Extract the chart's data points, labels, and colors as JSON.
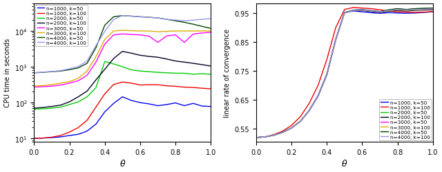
{
  "theta": [
    0.0,
    0.05,
    0.1,
    0.15,
    0.2,
    0.25,
    0.3,
    0.35,
    0.4,
    0.45,
    0.5,
    0.55,
    0.6,
    0.65,
    0.7,
    0.75,
    0.8,
    0.85,
    0.9,
    0.95,
    1.0
  ],
  "cpu_n1000_k50": [
    10,
    10.2,
    10.5,
    11,
    12,
    13,
    16,
    25,
    55,
    95,
    145,
    115,
    100,
    92,
    82,
    88,
    98,
    82,
    95,
    80,
    78
  ],
  "cpu_n1000_k100": [
    10,
    10.2,
    10.8,
    12,
    15,
    20,
    32,
    75,
    175,
    320,
    375,
    350,
    310,
    315,
    315,
    295,
    285,
    270,
    265,
    252,
    242
  ],
  "cpu_n2000_k50": [
    65,
    67,
    70,
    75,
    88,
    105,
    145,
    260,
    1400,
    1200,
    1000,
    820,
    760,
    730,
    700,
    680,
    660,
    660,
    620,
    640,
    620
  ],
  "cpu_n2000_k100": [
    70,
    73,
    78,
    85,
    105,
    145,
    210,
    430,
    850,
    1700,
    2700,
    2400,
    2100,
    1950,
    1850,
    1650,
    1450,
    1350,
    1250,
    1150,
    1050
  ],
  "cpu_n3000_k50": [
    270,
    278,
    288,
    308,
    348,
    408,
    580,
    1350,
    4300,
    7800,
    8300,
    8000,
    7800,
    7200,
    4800,
    7300,
    7800,
    4800,
    8200,
    8800,
    9200
  ],
  "cpu_n3000_k100": [
    290,
    298,
    318,
    348,
    385,
    480,
    760,
    1900,
    5800,
    10000,
    10500,
    10200,
    10000,
    10000,
    9500,
    9800,
    10000,
    10000,
    10000,
    10000,
    10000
  ],
  "cpu_n4000_k50": [
    680,
    700,
    730,
    760,
    830,
    930,
    1250,
    3400,
    14500,
    25000,
    27000,
    26000,
    25000,
    24200,
    23200,
    21200,
    19200,
    17500,
    15500,
    13500,
    11800
  ],
  "cpu_n4000_k100": [
    680,
    710,
    740,
    780,
    880,
    1020,
    1450,
    3900,
    9700,
    21000,
    27000,
    26000,
    25000,
    24000,
    23200,
    21200,
    20200,
    19200,
    20200,
    21200,
    22200
  ],
  "conv_n1000_k50": [
    0.52,
    0.522,
    0.528,
    0.538,
    0.553,
    0.576,
    0.614,
    0.665,
    0.74,
    0.86,
    0.953,
    0.958,
    0.955,
    0.952,
    0.95,
    0.952,
    0.951,
    0.95,
    0.951,
    0.953,
    0.955
  ],
  "conv_n1000_k100": [
    0.52,
    0.522,
    0.53,
    0.542,
    0.562,
    0.592,
    0.638,
    0.7,
    0.79,
    0.9,
    0.963,
    0.97,
    0.968,
    0.966,
    0.962,
    0.958,
    0.955,
    0.954,
    0.953,
    0.954,
    0.956
  ],
  "conv_n2000_k50": [
    0.52,
    0.522,
    0.528,
    0.538,
    0.553,
    0.576,
    0.613,
    0.663,
    0.737,
    0.858,
    0.952,
    0.96,
    0.962,
    0.958,
    0.955,
    0.962,
    0.965,
    0.963,
    0.965,
    0.967,
    0.968
  ],
  "conv_n2000_k100": [
    0.52,
    0.522,
    0.528,
    0.538,
    0.553,
    0.576,
    0.613,
    0.663,
    0.737,
    0.858,
    0.951,
    0.959,
    0.96,
    0.956,
    0.953,
    0.957,
    0.96,
    0.958,
    0.96,
    0.961,
    0.962
  ],
  "conv_n3000_k50": [
    0.52,
    0.522,
    0.528,
    0.538,
    0.553,
    0.576,
    0.613,
    0.664,
    0.738,
    0.859,
    0.952,
    0.961,
    0.962,
    0.959,
    0.956,
    0.961,
    0.965,
    0.962,
    0.965,
    0.966,
    0.967
  ],
  "conv_n3000_k100": [
    0.52,
    0.522,
    0.528,
    0.538,
    0.553,
    0.576,
    0.613,
    0.663,
    0.737,
    0.858,
    0.951,
    0.96,
    0.961,
    0.958,
    0.955,
    0.959,
    0.962,
    0.96,
    0.962,
    0.963,
    0.964
  ],
  "conv_n4000_k50": [
    0.52,
    0.522,
    0.528,
    0.538,
    0.553,
    0.576,
    0.613,
    0.663,
    0.737,
    0.858,
    0.952,
    0.961,
    0.963,
    0.959,
    0.956,
    0.962,
    0.966,
    0.963,
    0.966,
    0.967,
    0.968
  ],
  "conv_n4000_k100": [
    0.52,
    0.522,
    0.528,
    0.538,
    0.553,
    0.576,
    0.613,
    0.663,
    0.737,
    0.858,
    0.951,
    0.96,
    0.962,
    0.958,
    0.955,
    0.96,
    0.963,
    0.961,
    0.963,
    0.964,
    0.965
  ],
  "colors": {
    "n1000_k50": "#0000ee",
    "n1000_k100": "#ee0000",
    "n2000_k50": "#00cc00",
    "n2000_k100": "#000020",
    "n3000_k50": "#ff00ff",
    "n3000_k100": "#ddaa00",
    "n4000_k50": "#004400",
    "n4000_k100": "#9999ee"
  },
  "labels": {
    "n1000_k50": "n=1000, k=50",
    "n1000_k100": "n=1000, k=100",
    "n2000_k50": "n=2000, k=50",
    "n2000_k100": "n=2000, k=100",
    "n3000_k50": "n=3000, k=50",
    "n3000_k100": "n=3000, k=100",
    "n4000_k50": "n=4000, k=50",
    "n4000_k100": "n=4000, k=100"
  },
  "xlabel": "θ",
  "ylabel_left": "CPU time in seconds",
  "ylabel_right": "linear rate of convergence",
  "ylim_left": [
    8,
    60000
  ],
  "ylim_right": [
    0.505,
    0.985
  ],
  "yticks_right": [
    0.55,
    0.65,
    0.75,
    0.85,
    0.95
  ],
  "xticks": [
    0,
    0.2,
    0.4,
    0.6,
    0.8,
    1.0
  ],
  "background_color": "#ffffff"
}
